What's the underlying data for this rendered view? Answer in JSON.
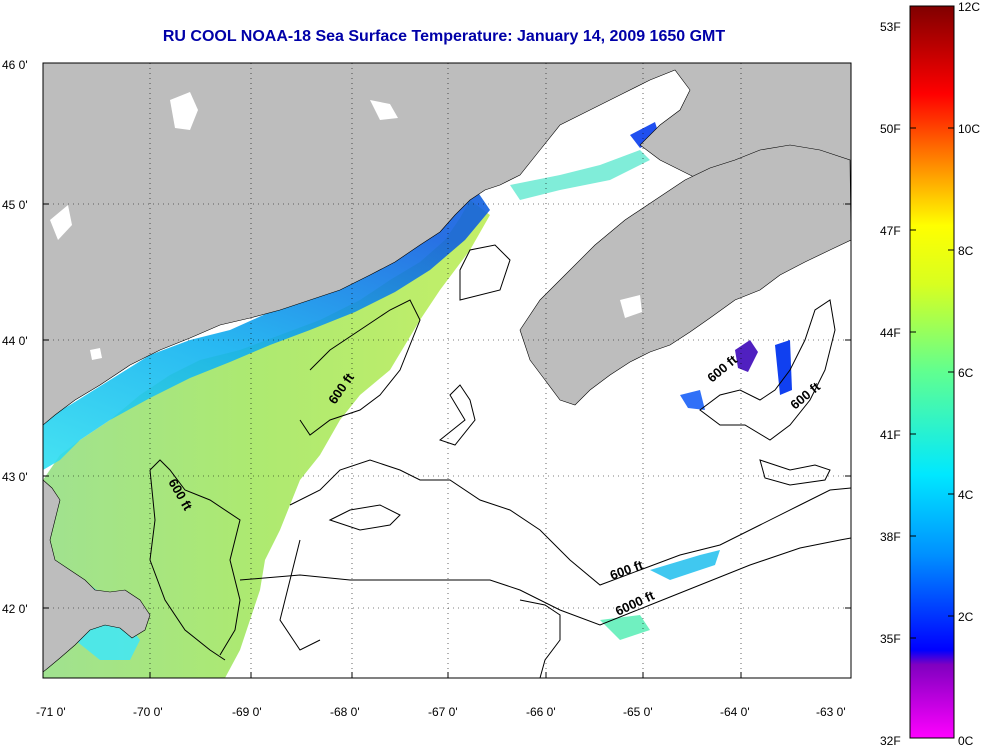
{
  "title": "RU COOL  NOAA-18  Sea Surface Temperature:  January 14, 2009 1650 GMT",
  "map": {
    "lon_range": [
      -71,
      -63
    ],
    "lat_range": [
      41.5,
      46
    ],
    "x_ticks": [
      "-71 0'",
      "-70 0'",
      "-69 0'",
      "-68 0'",
      "-67 0'",
      "-66 0'",
      "-65 0'",
      "-64 0'",
      "-63 0'"
    ],
    "y_ticks": [
      "46 0'",
      "45 0'",
      "44 0'",
      "43 0'",
      "42 0'"
    ],
    "land_color": "#bdbdbd",
    "contour_labels": [
      "600 ft",
      "600 ft",
      "600 ft",
      "600 ft",
      "600 ft",
      "6000 ft"
    ]
  },
  "colorbar": {
    "fahrenheit_labels": [
      "53F",
      "50F",
      "47F",
      "44F",
      "41F",
      "38F",
      "35F",
      "32F"
    ],
    "celsius_labels": [
      "12C",
      "10C",
      "8C",
      "6C",
      "4C",
      "2C",
      "0C"
    ],
    "colors": [
      "#ff00ff",
      "#8000c0",
      "#0000ff",
      "#0080ff",
      "#00ffff",
      "#80ff80",
      "#ffff00",
      "#ff8000",
      "#ff0000",
      "#800000"
    ]
  }
}
